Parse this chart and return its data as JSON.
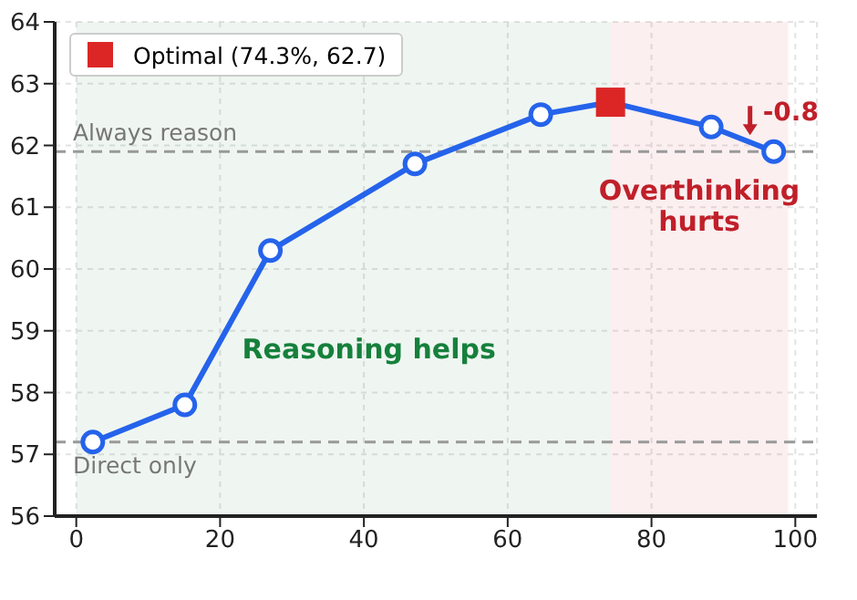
{
  "chart_data": {
    "type": "line",
    "series": [
      {
        "color": "#2563eb",
        "marker": "circle",
        "x": [
          2.3,
          15.1,
          27.0,
          47.1,
          64.6,
          74.3,
          88.3,
          97.0
        ],
        "values": [
          57.2,
          57.8,
          60.3,
          61.7,
          62.5,
          62.7,
          62.3,
          61.9
        ]
      },
      {
        "type": "scatter",
        "name": "Optimal (74.3%, 62.7)",
        "color": "#dc2626",
        "marker": "square",
        "x": [
          74.3
        ],
        "values": [
          62.7
        ]
      }
    ],
    "xlim": [
      -3,
      103
    ],
    "xticks": [
      0,
      20,
      40,
      60,
      80,
      100
    ],
    "ylim": [
      56,
      64
    ],
    "yticks": [
      56,
      57,
      58,
      59,
      60,
      61,
      62,
      63,
      64
    ],
    "grid": true,
    "legend": "top left",
    "ref_lines": [
      {
        "axis": "y",
        "value": 61.9,
        "label": "Always reason",
        "color": "#999999",
        "line_style": "dashed"
      },
      {
        "axis": "y",
        "value": 57.2,
        "label": "Direct only",
        "color": "#999999",
        "line_style": "dashed"
      }
    ],
    "bands": [
      {
        "axis": "x",
        "from": 0,
        "to": 74.3,
        "label": "Reasoning helps",
        "color": "#16803c"
      },
      {
        "axis": "x",
        "from": 74.3,
        "to": 99,
        "label": "Overthinking hurts",
        "color": "#c0202a"
      }
    ],
    "annotations": [
      {
        "text": "-0.8",
        "x": 97,
        "y": 61.9
      }
    ]
  }
}
